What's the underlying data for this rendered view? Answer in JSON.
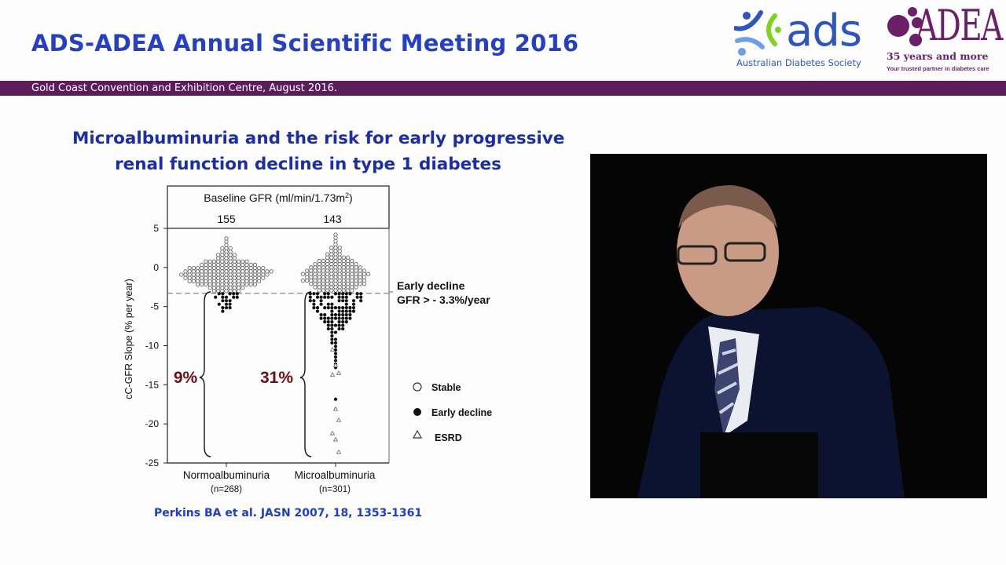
{
  "header": {
    "meeting_title": "ADS-ADEA Annual Scientific Meeting 2016",
    "venue": "Gold Coast Convention and Exhibition Centre, August 2016.",
    "ads_logo": {
      "word": "ads",
      "subtitle": "Australian Diabetes Society"
    },
    "adea_logo": {
      "word": "ADEA",
      "tagline": "35 years and more",
      "subtitle": "Your trusted partner in diabetes care"
    },
    "band_color": "#5b1d5a"
  },
  "slide": {
    "title_line1": "Microalbuminuria and the risk for early progressive",
    "title_line2": "renal function decline in type 1 diabetes",
    "citation": "Perkins BA et al. JASN 2007, 18, 1353-1361"
  },
  "chart_data": {
    "type": "scatter",
    "ylabel": "cC-GFR Slope (% per year)",
    "ylim": [
      -25,
      5
    ],
    "yticks": [
      "5",
      "0",
      "-5",
      "-10",
      "-15",
      "-20",
      "-25"
    ],
    "header_label": "Baseline GFR (ml/min/1.73m",
    "header_sup": "2",
    "header_close": ")",
    "threshold": -3.3,
    "threshold_label_line1": "Early decline",
    "threshold_label_line2": "GFR > - 3.3%/year",
    "categories": [
      {
        "name": "Normoalbuminuria",
        "n_label": "(n=268)",
        "n": 268,
        "baseline_gfr": "155",
        "early_decline_pct": "9%",
        "stable_max": 3.7,
        "decline_min": -6.0,
        "esrd": []
      },
      {
        "name": "Microalbuminuria",
        "n_label": "(n=301)",
        "n": 301,
        "baseline_gfr": "143",
        "early_decline_pct": "31%",
        "stable_max": 4.2,
        "decline_min": -17.0,
        "esrd": [
          -10.5,
          -12.5,
          -13.5,
          -13.7,
          -18.1,
          -19.5,
          -21.2,
          -22.0,
          -23.6
        ]
      }
    ],
    "legend": [
      {
        "label": "Stable",
        "marker": "open-circle"
      },
      {
        "label": "Early decline",
        "marker": "filled-circle"
      },
      {
        "label": "ESRD",
        "marker": "open-triangle"
      }
    ],
    "pct_color": "#6b0f12"
  }
}
